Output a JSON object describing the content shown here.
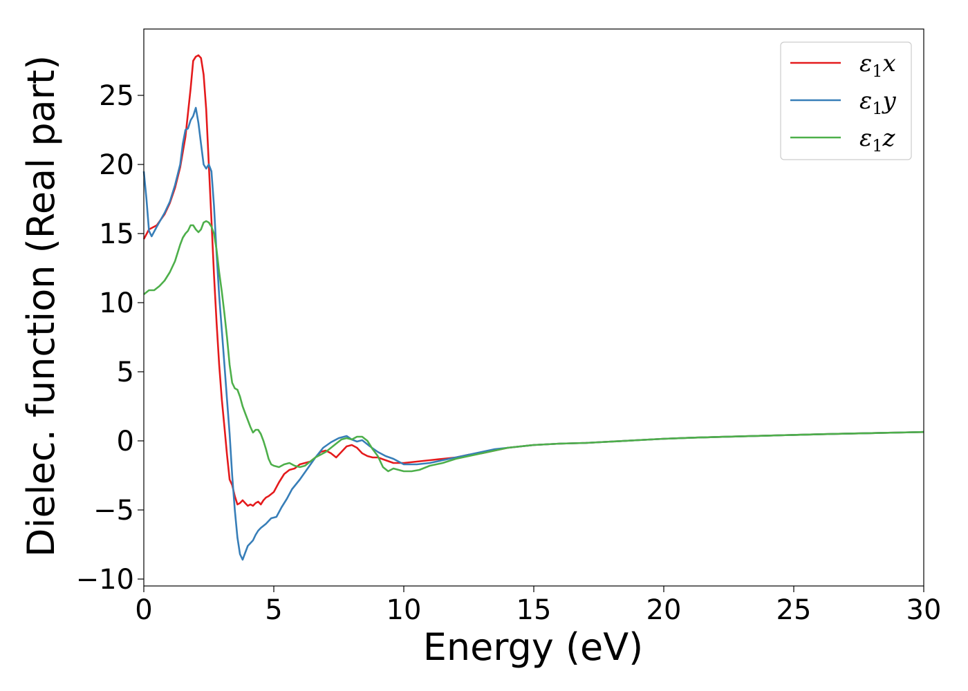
{
  "chart_data": {
    "type": "line",
    "title": "",
    "xlabel": "Energy (eV)",
    "ylabel": "Dielec. function (Real part)",
    "xlim": [
      0,
      30
    ],
    "ylim": [
      -10.5,
      29.8
    ],
    "xticks": [
      0,
      5,
      10,
      15,
      20,
      25,
      30
    ],
    "xtick_labels": [
      "0",
      "5",
      "10",
      "15",
      "20",
      "25",
      "30"
    ],
    "yticks": [
      -10,
      -5,
      0,
      5,
      10,
      15,
      20,
      25
    ],
    "ytick_labels": [
      "−10",
      "−5",
      "0",
      "5",
      "10",
      "15",
      "20",
      "25"
    ],
    "grid": false,
    "legend_position": "top-right",
    "series": [
      {
        "name": "ε₁x",
        "name_base": "ε",
        "name_sub": "1",
        "name_suffix": "x",
        "color": "#e41a1c",
        "x": [
          0,
          0.2,
          0.5,
          0.8,
          1.0,
          1.2,
          1.4,
          1.6,
          1.8,
          1.9,
          2.0,
          2.1,
          2.2,
          2.3,
          2.4,
          2.5,
          2.6,
          2.7,
          2.8,
          2.9,
          3.0,
          3.1,
          3.2,
          3.3,
          3.4,
          3.5,
          3.6,
          3.7,
          3.8,
          3.9,
          4.0,
          4.1,
          4.2,
          4.3,
          4.4,
          4.5,
          4.6,
          4.7,
          4.8,
          5.0,
          5.2,
          5.4,
          5.6,
          5.8,
          6.0,
          6.2,
          6.4,
          6.6,
          6.8,
          7.0,
          7.2,
          7.4,
          7.6,
          7.8,
          8.0,
          8.2,
          8.4,
          8.6,
          8.8,
          9.0,
          9.3,
          9.6,
          10.0,
          10.5,
          11.0,
          11.5,
          12.0,
          12.5,
          13.0,
          13.5,
          14.0,
          14.5,
          15.0,
          15.5,
          16.0,
          17.0,
          18.0,
          19.0,
          20.0,
          21.0,
          22.0,
          23.0,
          24.0,
          25.0,
          26.0,
          27.0,
          28.0,
          29.0,
          30.0
        ],
        "y": [
          14.6,
          15.3,
          15.6,
          16.4,
          17.2,
          18.3,
          19.8,
          22.0,
          25.5,
          27.5,
          27.8,
          27.9,
          27.7,
          26.5,
          24.0,
          20.0,
          16.0,
          12.0,
          8.5,
          5.5,
          3.0,
          1.0,
          -1.0,
          -2.8,
          -3.2,
          -4.0,
          -4.6,
          -4.5,
          -4.3,
          -4.5,
          -4.7,
          -4.6,
          -4.7,
          -4.5,
          -4.4,
          -4.6,
          -4.3,
          -4.1,
          -4.0,
          -3.7,
          -3.0,
          -2.4,
          -2.1,
          -2.0,
          -1.7,
          -1.6,
          -1.5,
          -1.2,
          -0.8,
          -0.7,
          -0.9,
          -1.2,
          -0.8,
          -0.4,
          -0.3,
          -0.5,
          -0.9,
          -1.1,
          -1.2,
          -1.2,
          -1.4,
          -1.6,
          -1.6,
          -1.5,
          -1.4,
          -1.3,
          -1.2,
          -1.0,
          -0.9,
          -0.7,
          -0.5,
          -0.4,
          -0.3,
          -0.25,
          -0.2,
          -0.15,
          -0.05,
          0.05,
          0.15,
          0.22,
          0.28,
          0.33,
          0.38,
          0.43,
          0.48,
          0.52,
          0.56,
          0.6,
          0.64
        ]
      },
      {
        "name": "ε₁y",
        "name_base": "ε",
        "name_sub": "1",
        "name_suffix": "y",
        "color": "#377eb8",
        "x": [
          0,
          0.1,
          0.2,
          0.3,
          0.5,
          0.8,
          1.0,
          1.2,
          1.4,
          1.5,
          1.6,
          1.7,
          1.8,
          1.9,
          2.0,
          2.1,
          2.2,
          2.3,
          2.4,
          2.5,
          2.6,
          2.7,
          2.8,
          2.9,
          3.0,
          3.1,
          3.2,
          3.3,
          3.4,
          3.5,
          3.6,
          3.7,
          3.8,
          3.9,
          4.0,
          4.1,
          4.2,
          4.3,
          4.4,
          4.5,
          4.7,
          4.9,
          5.1,
          5.3,
          5.5,
          5.7,
          6.0,
          6.3,
          6.6,
          6.9,
          7.2,
          7.5,
          7.8,
          8.0,
          8.2,
          8.4,
          8.7,
          9.0,
          9.3,
          9.6,
          10.0,
          10.5,
          11.0,
          11.5,
          12.0,
          12.5,
          13.0,
          13.5,
          14.0,
          14.5,
          15.0,
          15.5,
          16.0,
          17.0,
          18.0,
          19.0,
          20.0,
          21.0,
          22.0,
          23.0,
          24.0,
          25.0,
          26.0,
          27.0,
          28.0,
          29.0,
          30.0
        ],
        "y": [
          19.5,
          17.5,
          15.2,
          14.8,
          15.5,
          16.5,
          17.3,
          18.5,
          20.0,
          21.5,
          22.5,
          22.6,
          23.2,
          23.5,
          24.1,
          23.0,
          21.5,
          20.0,
          19.7,
          20.0,
          19.5,
          17.0,
          13.5,
          10.5,
          8.0,
          5.5,
          3.0,
          0.5,
          -2.5,
          -5.0,
          -7.0,
          -8.2,
          -8.6,
          -8.1,
          -7.6,
          -7.4,
          -7.2,
          -6.8,
          -6.5,
          -6.3,
          -6.0,
          -5.6,
          -5.5,
          -4.8,
          -4.2,
          -3.5,
          -2.8,
          -2.0,
          -1.2,
          -0.5,
          -0.1,
          0.2,
          0.35,
          0.1,
          -0.05,
          0.05,
          -0.4,
          -0.8,
          -1.1,
          -1.3,
          -1.7,
          -1.7,
          -1.6,
          -1.4,
          -1.2,
          -1.0,
          -0.8,
          -0.6,
          -0.5,
          -0.4,
          -0.3,
          -0.25,
          -0.2,
          -0.15,
          -0.05,
          0.05,
          0.15,
          0.22,
          0.28,
          0.33,
          0.38,
          0.43,
          0.48,
          0.52,
          0.56,
          0.6,
          0.64
        ]
      },
      {
        "name": "ε₁z",
        "name_base": "ε",
        "name_sub": "1",
        "name_suffix": "z",
        "color": "#4daf4a",
        "x": [
          0,
          0.2,
          0.4,
          0.6,
          0.8,
          1.0,
          1.2,
          1.4,
          1.5,
          1.6,
          1.7,
          1.8,
          1.9,
          2.0,
          2.1,
          2.2,
          2.3,
          2.4,
          2.5,
          2.6,
          2.7,
          2.8,
          2.9,
          3.0,
          3.1,
          3.2,
          3.3,
          3.4,
          3.5,
          3.6,
          3.7,
          3.8,
          3.9,
          4.0,
          4.1,
          4.2,
          4.3,
          4.4,
          4.5,
          4.6,
          4.7,
          4.8,
          4.9,
          5.0,
          5.2,
          5.4,
          5.6,
          5.8,
          6.0,
          6.2,
          6.4,
          6.6,
          6.8,
          7.0,
          7.2,
          7.4,
          7.6,
          7.8,
          8.0,
          8.2,
          8.4,
          8.6,
          8.8,
          9.0,
          9.2,
          9.4,
          9.6,
          9.8,
          10.0,
          10.3,
          10.6,
          11.0,
          11.5,
          12.0,
          12.5,
          13.0,
          13.5,
          14.0,
          14.5,
          15.0,
          15.5,
          16.0,
          17.0,
          18.0,
          19.0,
          20.0,
          21.0,
          22.0,
          23.0,
          24.0,
          25.0,
          26.0,
          27.0,
          28.0,
          29.0,
          30.0
        ],
        "y": [
          10.6,
          10.9,
          10.9,
          11.2,
          11.6,
          12.2,
          13.0,
          14.2,
          14.7,
          15.0,
          15.2,
          15.6,
          15.6,
          15.3,
          15.1,
          15.3,
          15.8,
          15.9,
          15.8,
          15.5,
          15.0,
          13.8,
          12.2,
          10.8,
          9.2,
          7.5,
          5.5,
          4.2,
          3.8,
          3.7,
          3.2,
          2.5,
          2.0,
          1.5,
          1.0,
          0.6,
          0.8,
          0.8,
          0.5,
          0.0,
          -0.6,
          -1.3,
          -1.7,
          -1.8,
          -1.9,
          -1.7,
          -1.6,
          -1.8,
          -1.9,
          -1.8,
          -1.5,
          -1.2,
          -1.0,
          -0.8,
          -0.5,
          -0.2,
          0.1,
          0.2,
          0.1,
          0.3,
          0.3,
          0.0,
          -0.6,
          -1.1,
          -1.9,
          -2.2,
          -2.0,
          -2.1,
          -2.2,
          -2.2,
          -2.1,
          -1.8,
          -1.6,
          -1.3,
          -1.1,
          -0.9,
          -0.7,
          -0.5,
          -0.4,
          -0.3,
          -0.25,
          -0.2,
          -0.15,
          -0.05,
          0.05,
          0.15,
          0.22,
          0.28,
          0.33,
          0.38,
          0.43,
          0.48,
          0.52,
          0.56,
          0.6,
          0.64
        ]
      }
    ]
  }
}
